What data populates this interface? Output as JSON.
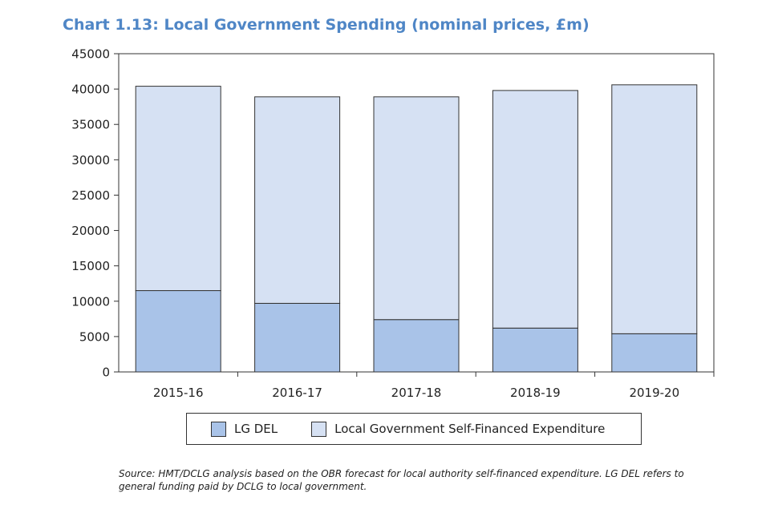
{
  "title": "Chart 1.13: Local Government Spending (nominal prices, £m)",
  "source_note": "Source: HMT/DCLG analysis based on the OBR forecast for local authority self-financed expenditure. LG DEL refers to general funding paid by DCLG to local government.",
  "legend": {
    "lg_del": "LG DEL",
    "self_financed": "Local Government Self-Financed Expenditure"
  },
  "colors": {
    "lg_del": "#a9c3e8",
    "self_financed": "#d6e1f3",
    "title": "#4f86c6"
  },
  "chart_data": {
    "type": "bar",
    "stacked": true,
    "title": "Chart 1.13: Local Government Spending (nominal prices, £m)",
    "xlabel": "",
    "ylabel": "",
    "ylim": [
      0,
      45000
    ],
    "yticks": [
      0,
      5000,
      10000,
      15000,
      20000,
      25000,
      30000,
      35000,
      40000,
      45000
    ],
    "categories": [
      "2015-16",
      "2016-17",
      "2017-18",
      "2018-19",
      "2019-20"
    ],
    "series": [
      {
        "name": "LG DEL",
        "values": [
          11500,
          9700,
          7400,
          6200,
          5400
        ]
      },
      {
        "name": "Local Government Self-Financed Expenditure",
        "values": [
          28900,
          29200,
          31500,
          33600,
          35200
        ]
      }
    ],
    "grid": false,
    "legend_position": "bottom"
  }
}
